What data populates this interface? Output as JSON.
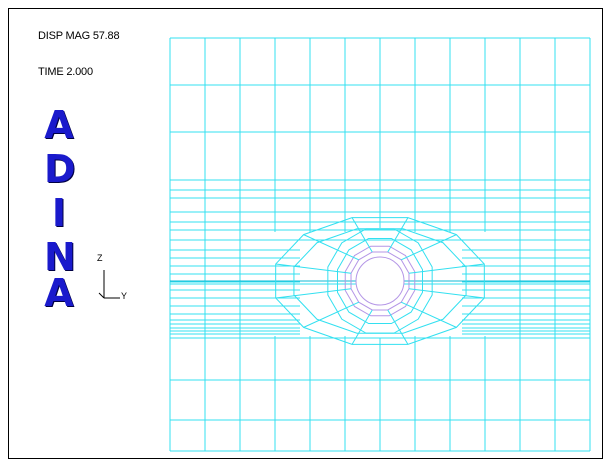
{
  "header": {
    "disp_mag": "DISP MAG 57.88",
    "time": "TIME 2.000"
  },
  "logo": {
    "letters": [
      "A",
      "D",
      "I",
      "N",
      "A"
    ]
  },
  "axes": {
    "vertical": "Z",
    "horizontal": "Y"
  },
  "colors": {
    "mesh": "#33e0f0",
    "hole_ring": "#b496e6",
    "logo": "#1a1acc",
    "frame": "#000000"
  }
}
